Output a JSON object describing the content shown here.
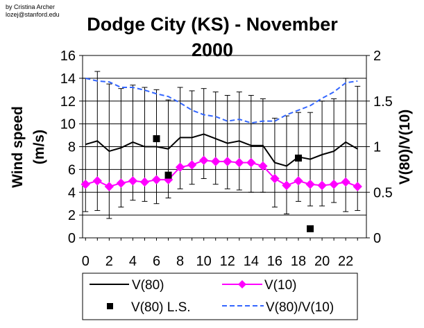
{
  "credit": {
    "line1": "by Cristina Archer",
    "line2": "lozej@stanford.edu"
  },
  "chart_data": {
    "type": "line",
    "title_line1": "Dodge City (KS) - November",
    "title_line2": "2000",
    "xlabel": "",
    "ylabel": "Wind speed (m/s)",
    "ylabel_line1": "Wind speed",
    "ylabel_line2": "(m/s)",
    "y2label": "V(80)/V(10)",
    "x": [
      0,
      1,
      2,
      3,
      4,
      5,
      6,
      7,
      8,
      9,
      10,
      11,
      12,
      13,
      14,
      15,
      16,
      17,
      18,
      19,
      20,
      21,
      22,
      23
    ],
    "xticks": [
      0,
      2,
      4,
      6,
      8,
      10,
      12,
      14,
      16,
      18,
      20,
      22
    ],
    "ylim": [
      0,
      16
    ],
    "yticks": [
      0,
      2,
      4,
      6,
      8,
      10,
      12,
      14,
      16
    ],
    "y2lim": [
      0,
      2
    ],
    "y2ticks": [
      0,
      0.5,
      1,
      1.5,
      2
    ],
    "y2tick_labels": [
      "0",
      "0.5",
      "1",
      "1.5",
      "2"
    ],
    "grid": true,
    "legend_position": "bottom",
    "colors": {
      "v80": "#000000",
      "v10": "#ff00ff",
      "ratio": "#3366ff",
      "ls": "#000000",
      "background": "#ffffff"
    },
    "series": [
      {
        "name": "V(80)",
        "axis": "left",
        "style": "solid-line",
        "values": [
          8.2,
          8.5,
          7.6,
          7.9,
          8.4,
          8.0,
          8.0,
          7.8,
          8.8,
          8.8,
          9.1,
          8.7,
          8.3,
          8.5,
          8.1,
          8.1,
          6.6,
          6.3,
          7.1,
          6.9,
          7.3,
          7.6,
          8.4,
          7.8
        ],
        "error_low": [
          2.3,
          2.4,
          1.7,
          2.7,
          3.3,
          3.2,
          3.0,
          3.5,
          4.3,
          4.7,
          5.2,
          4.7,
          4.3,
          4.2,
          4.0,
          4.0,
          2.7,
          2.1,
          3.2,
          2.8,
          2.8,
          3.1,
          2.3,
          2.4
        ],
        "error_high": [
          14.0,
          14.6,
          13.5,
          13.1,
          13.4,
          13.2,
          13.0,
          12.1,
          13.2,
          12.9,
          13.1,
          12.8,
          12.5,
          12.8,
          12.5,
          12.2,
          10.5,
          10.7,
          11.0,
          11.0,
          12.0,
          12.2,
          14.0,
          13.3
        ]
      },
      {
        "name": "V(10)",
        "axis": "left",
        "style": "line-diamond",
        "values": [
          4.7,
          5.0,
          4.5,
          4.8,
          5.0,
          4.9,
          5.1,
          5.1,
          6.2,
          6.4,
          6.8,
          6.7,
          6.7,
          6.6,
          6.6,
          6.3,
          5.2,
          4.6,
          5.0,
          4.7,
          4.6,
          4.7,
          4.9,
          4.5
        ]
      },
      {
        "name": "V(80) L.S.",
        "axis": "left",
        "style": "square-marker",
        "points": [
          {
            "x": 6,
            "y": 8.7
          },
          {
            "x": 7,
            "y": 5.5
          },
          {
            "x": 18,
            "y": 7.0
          },
          {
            "x": 19,
            "y": 0.8
          }
        ]
      },
      {
        "name": "V(80)/V(10)",
        "axis": "right",
        "style": "dashed-line",
        "values": [
          1.75,
          1.72,
          1.71,
          1.65,
          1.65,
          1.62,
          1.58,
          1.55,
          1.48,
          1.4,
          1.35,
          1.33,
          1.28,
          1.3,
          1.26,
          1.28,
          1.28,
          1.35,
          1.4,
          1.45,
          1.53,
          1.6,
          1.7,
          1.72
        ]
      }
    ]
  }
}
